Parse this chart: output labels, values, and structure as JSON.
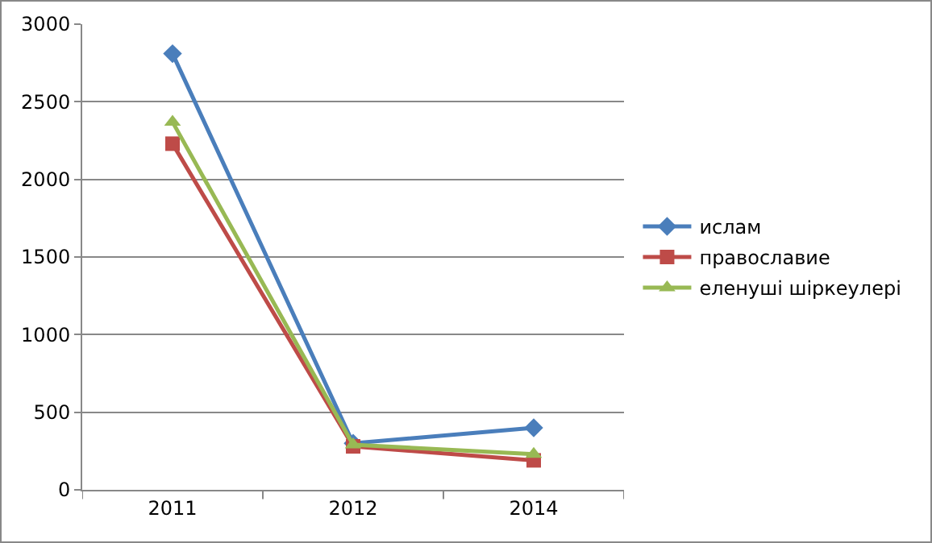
{
  "chart_data": {
    "type": "line",
    "categories": [
      "2011",
      "2012",
      "2014"
    ],
    "series": [
      {
        "name": "ислам",
        "color": "#4a7ebb",
        "values": [
          2810,
          300,
          400
        ],
        "marker": "diamond"
      },
      {
        "name": "православие",
        "color": "#be4b48",
        "values": [
          2230,
          280,
          190
        ],
        "marker": "square"
      },
      {
        "name": "еленуші шіркеулері",
        "color": "#98b954",
        "values": [
          2370,
          290,
          230
        ],
        "marker": "triangle"
      }
    ],
    "ylim": [
      0,
      3000
    ],
    "yticks": [
      0,
      500,
      1000,
      1500,
      2000,
      2500,
      3000
    ],
    "grid": "y",
    "legend": "right"
  }
}
